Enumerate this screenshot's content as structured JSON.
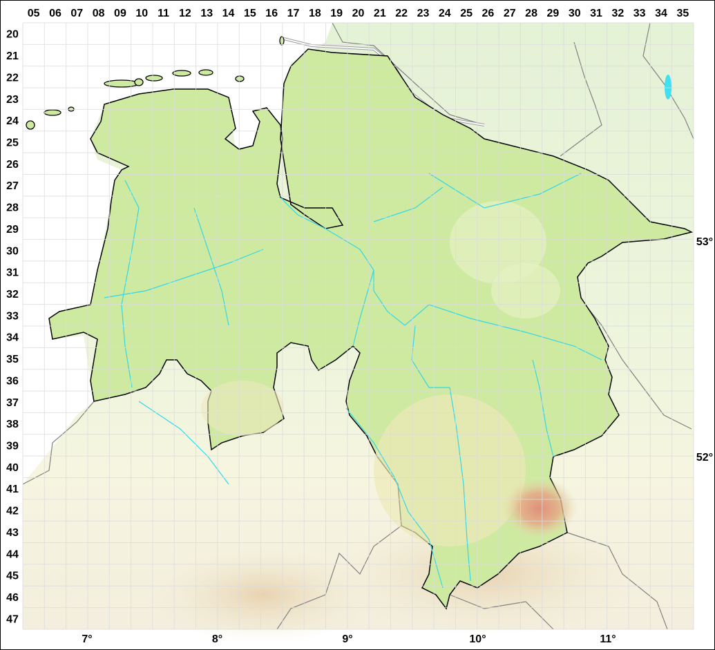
{
  "map": {
    "grid_columns": [
      "05",
      "06",
      "07",
      "08",
      "09",
      "10",
      "11",
      "12",
      "13",
      "14",
      "15",
      "16",
      "17",
      "18",
      "19",
      "20",
      "21",
      "22",
      "23",
      "24",
      "25",
      "26",
      "27",
      "28",
      "29",
      "30",
      "31",
      "32",
      "33",
      "34",
      "35"
    ],
    "grid_rows": [
      "20",
      "21",
      "22",
      "23",
      "24",
      "25",
      "26",
      "27",
      "28",
      "29",
      "30",
      "31",
      "32",
      "33",
      "34",
      "35",
      "36",
      "37",
      "38",
      "39",
      "40",
      "41",
      "42",
      "43",
      "44",
      "45",
      "46",
      "47"
    ],
    "longitude_labels": [
      {
        "value": 7,
        "text": "7°"
      },
      {
        "value": 8,
        "text": "8°"
      },
      {
        "value": 9,
        "text": "9°"
      },
      {
        "value": 10,
        "text": "10°"
      },
      {
        "value": 11,
        "text": "11°"
      }
    ],
    "latitude_labels": [
      {
        "value": 53,
        "text": "53°"
      },
      {
        "value": 52,
        "text": "52°"
      }
    ],
    "colors": {
      "region_fill": "#cdeaa0",
      "region_border": "#000000",
      "outside_north": "#e6f3d8",
      "outside_south": "#f6f6e0",
      "highland": "#e4c59a",
      "peak": "#e0907a",
      "river": "#33d6e6",
      "grid": "#dcdcdc",
      "state_border": "#808080"
    }
  }
}
